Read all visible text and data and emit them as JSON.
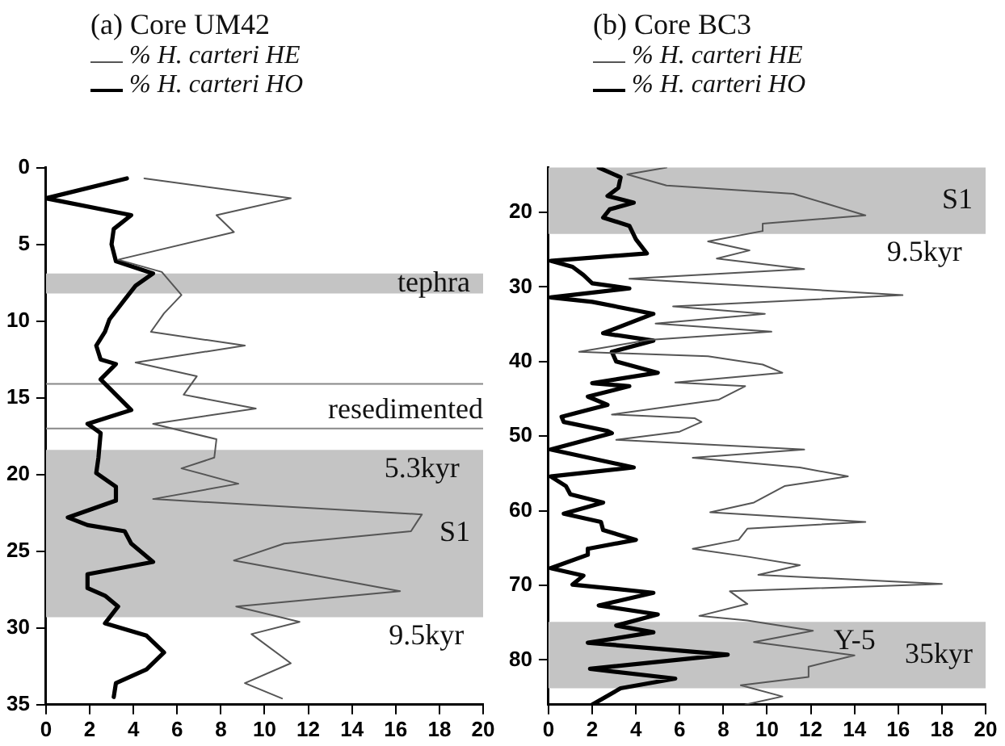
{
  "chart_data": [
    {
      "type": "line",
      "title": "(a) Core UM42",
      "legend": "top left",
      "grid": false,
      "xlim": [
        0,
        20
      ],
      "xticks": [
        0,
        2,
        4,
        6,
        8,
        10,
        12,
        14,
        16,
        18,
        20
      ],
      "ylim": [
        35,
        0
      ],
      "yticks": [
        0,
        5,
        10,
        15,
        20,
        25,
        30,
        35
      ],
      "series": [
        {
          "name": "% H. carteri HE",
          "color": "#555555",
          "x": [
            4.5,
            11.2,
            7.8,
            8.6,
            3.3,
            5.3,
            6.2,
            5.4,
            4.8,
            9.1,
            4.1,
            6.9,
            6.3,
            9.6,
            4.9,
            7.8,
            7.7,
            6.2,
            8.8,
            4.9,
            17.2,
            16.7,
            10.9,
            8.6,
            16.2,
            8.7,
            11.6,
            9.4,
            11.2,
            9.1,
            10.8
          ],
          "values": [
            0.7,
            2.0,
            3.1,
            4.2,
            6.0,
            6.8,
            8.3,
            9.5,
            10.7,
            11.6,
            12.7,
            13.6,
            14.8,
            15.7,
            16.7,
            17.7,
            18.9,
            19.6,
            20.6,
            21.6,
            22.6,
            23.7,
            24.5,
            25.6,
            27.6,
            28.6,
            29.6,
            30.4,
            32.3,
            33.6,
            34.6
          ]
        },
        {
          "name": "% H. carteri HO",
          "color": "#000000",
          "x": [
            3.7,
            0,
            3.9,
            3.1,
            3.0,
            3.2,
            4.9,
            4.1,
            3.6,
            2.9,
            2.7,
            2.3,
            2.5,
            3.2,
            2.5,
            3.2,
            3.9,
            1.9,
            2.5,
            2.4,
            2.3,
            3.2,
            3.2,
            1.0,
            1.9,
            3.6,
            3.9,
            4.9,
            1.9,
            1.9,
            2.7,
            3.3,
            2.7,
            4.6,
            5.4,
            4.6,
            3.2,
            3.1
          ],
          "values": [
            0.7,
            2.0,
            3.1,
            4.0,
            5.0,
            6.1,
            6.9,
            7.7,
            8.6,
            9.9,
            10.7,
            11.6,
            12.5,
            12.8,
            13.8,
            14.8,
            15.8,
            16.7,
            17.3,
            18.9,
            19.9,
            20.8,
            21.7,
            22.8,
            23.3,
            23.7,
            24.5,
            25.7,
            26.5,
            27.4,
            27.9,
            28.6,
            29.7,
            30.5,
            31.6,
            32.7,
            33.6,
            34.5
          ]
        }
      ],
      "bands": [
        {
          "axis": "y",
          "from": 6.9,
          "to": 8.2,
          "color": "#c4c4c4",
          "label": "tephra"
        },
        {
          "axis": "y",
          "from": 18.4,
          "to": 29.3,
          "color": "#c4c4c4",
          "label": "S1"
        }
      ],
      "ref_lines": [
        {
          "axis": "y",
          "value": 14.1,
          "color": "#888888"
        },
        {
          "axis": "y",
          "value": 17.0,
          "color": "#888888",
          "label": "resedimented"
        }
      ],
      "annotations": [
        {
          "text": "5.3kyr",
          "x": 17.2,
          "y": 18.4
        },
        {
          "text": "9.5kyr",
          "x": 17.4,
          "y": 29.3
        }
      ]
    },
    {
      "type": "line",
      "title": "(b) Core BC3",
      "legend": "top left",
      "grid": false,
      "xlim": [
        0,
        20
      ],
      "xticks": [
        0,
        2,
        4,
        6,
        8,
        10,
        12,
        14,
        16,
        18,
        20
      ],
      "ylim": [
        86,
        14
      ],
      "yticks": [
        20,
        30,
        40,
        50,
        60,
        70,
        80
      ],
      "series": [
        {
          "name": "% H. carteri HE",
          "color": "#555555",
          "x": [
            5.4,
            3.6,
            5.4,
            11.2,
            14.5,
            9.8,
            9.8,
            7.3,
            9.2,
            7.7,
            11.7,
            3.7,
            16.2,
            5.7,
            9.9,
            4.9,
            10.2,
            4.6,
            1.4,
            7.3,
            9.8,
            10.7,
            5.8,
            9.0,
            7.8,
            2.9,
            6.7,
            7.0,
            6.0,
            3.1,
            11.7,
            6.6,
            11.5,
            13.7,
            10.8,
            9.4,
            7.4,
            14.5,
            9.1,
            8.7,
            6.6,
            9.2,
            11.5,
            9.6,
            18.0,
            8.3,
            9.1,
            6.9,
            9.1,
            12.1,
            9.4,
            14.0,
            11.9,
            11.9,
            8.8,
            10.7,
            9.0
          ],
          "values": [
            14.0,
            14.9,
            16.4,
            17.5,
            20.4,
            21.5,
            22.5,
            23.9,
            25.1,
            26.2,
            27.6,
            28.9,
            31.1,
            32.6,
            33.6,
            34.9,
            36.0,
            37.1,
            38.7,
            39.3,
            40.4,
            41.5,
            42.8,
            43.3,
            45.1,
            47.1,
            47.6,
            48.1,
            49.4,
            50.5,
            51.8,
            52.9,
            54.2,
            55.4,
            56.7,
            58.9,
            60.2,
            61.5,
            62.4,
            63.9,
            65.1,
            66.2,
            67.3,
            68.6,
            69.8,
            70.8,
            72.5,
            74.1,
            74.7,
            76.1,
            77.6,
            79.4,
            80.9,
            82.3,
            83.4,
            84.9,
            86.0
          ]
        },
        {
          "name": "% H. carteri HO",
          "color": "#000000",
          "x": [
            2.3,
            3.3,
            3.2,
            2.7,
            3.9,
            2.8,
            2.5,
            3.7,
            4.0,
            4.5,
            0.1,
            1.1,
            1.6,
            2.0,
            3.7,
            0.1,
            2.0,
            4.8,
            2.5,
            4.8,
            2.9,
            3.1,
            5.0,
            2.0,
            3.7,
            1.8,
            2.7,
            0.6,
            0.7,
            2.7,
            2.9,
            0.1,
            3.9,
            0.1,
            0.8,
            1.0,
            2.5,
            0.7,
            2.4,
            2.5,
            4.0,
            1.8,
            1.8,
            0.1,
            1.6,
            1.1,
            4.8,
            2.3,
            5.0,
            3.1,
            4.8,
            1.8,
            8.2,
            1.9,
            5.8,
            3.3,
            2.0
          ],
          "values": [
            14.0,
            15.3,
            16.7,
            17.8,
            18.7,
            19.6,
            20.7,
            21.8,
            23.6,
            25.5,
            26.5,
            27.3,
            28.4,
            29.5,
            30.2,
            31.4,
            32.0,
            33.6,
            36.2,
            37.2,
            38.7,
            40.0,
            41.5,
            42.9,
            43.3,
            44.7,
            45.8,
            47.4,
            48.1,
            49.3,
            49.6,
            51.8,
            54.2,
            55.4,
            56.7,
            57.8,
            58.9,
            60.4,
            61.5,
            62.6,
            63.9,
            65.1,
            65.9,
            67.7,
            68.7,
            69.9,
            71.0,
            72.7,
            73.9,
            75.4,
            76.3,
            77.7,
            79.3,
            81.2,
            82.5,
            83.8,
            86.0
          ]
        }
      ],
      "bands": [
        {
          "axis": "y",
          "from": 14,
          "to": 22.9,
          "color": "#c4c4c4",
          "label": "S1"
        },
        {
          "axis": "y",
          "from": 74.9,
          "to": 83.8,
          "color": "#c4c4c4",
          "label": "35kyr"
        }
      ],
      "annotations": [
        {
          "text": "9.5kyr",
          "x": 17.2,
          "y": 22.9
        },
        {
          "text": "Y-5",
          "x": 14.0,
          "y": 74.9
        }
      ]
    }
  ]
}
